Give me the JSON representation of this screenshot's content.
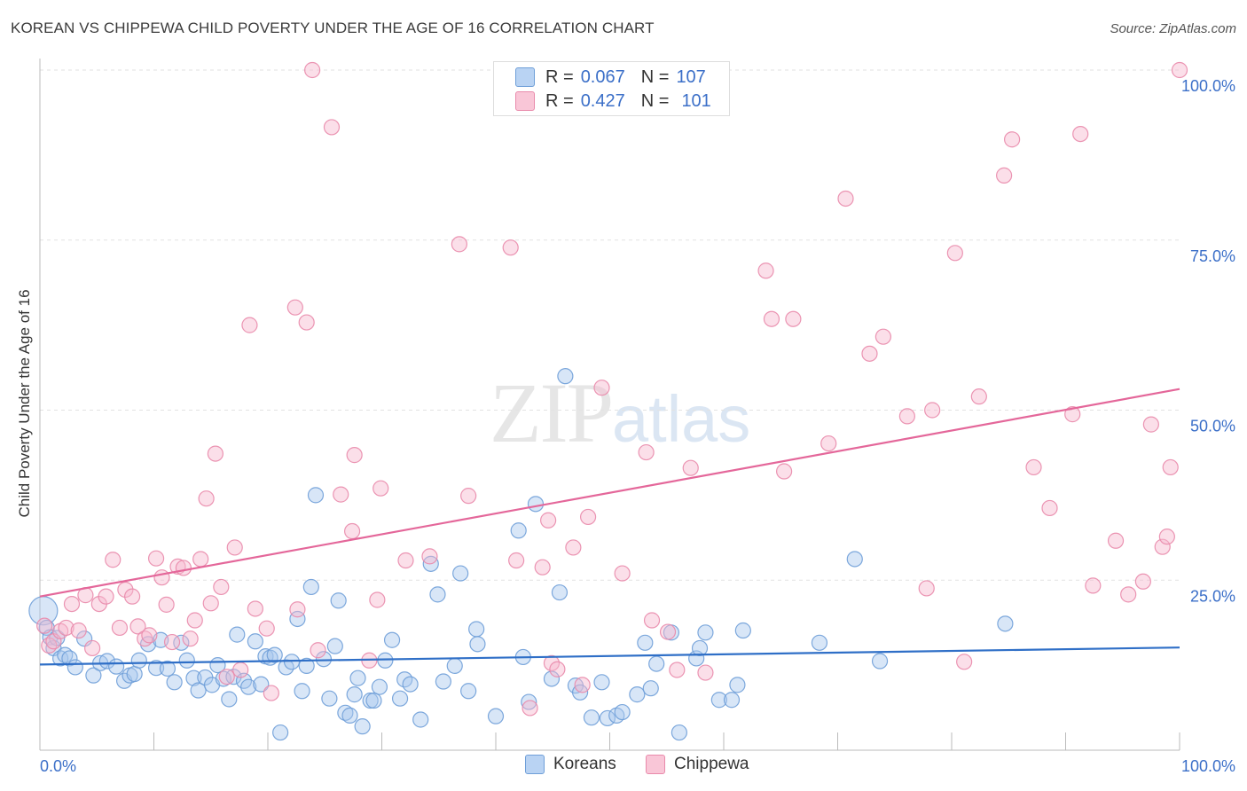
{
  "title": "KOREAN VS CHIPPEWA CHILD POVERTY UNDER THE AGE OF 16 CORRELATION CHART",
  "source": "Source: ZipAtlas.com",
  "watermark": {
    "zip": "ZIP",
    "atlas": "atlas"
  },
  "legend": {
    "r_label": "R =",
    "n_label": "N =",
    "rows": [
      {
        "r": "0.067",
        "n": "107"
      },
      {
        "r": "0.427",
        "n": "101"
      }
    ]
  },
  "colors": {
    "koreans_fill": "#a9c8ee",
    "koreans_stroke": "#6f9fd8",
    "koreans_line": "#2f6fc7",
    "chippewa_fill": "#f7b9ce",
    "chippewa_stroke": "#e98aab",
    "chippewa_line": "#e4679a",
    "axis_label": "#3b6fc8",
    "grid": "#e2e2e2"
  },
  "chart_data": {
    "type": "scatter",
    "title": "KOREAN VS CHIPPEWA CHILD POVERTY UNDER THE AGE OF 16 CORRELATION CHART",
    "xlabel": "",
    "ylabel": "Child Poverty Under the Age of 16",
    "xlim": [
      0,
      100
    ],
    "ylim": [
      0,
      100
    ],
    "x_tick_labels": [
      "0.0%",
      "100.0%"
    ],
    "y_tick_labels": [
      "25.0%",
      "50.0%",
      "75.0%",
      "100.0%"
    ],
    "y_ticks": [
      25,
      50,
      75,
      100
    ],
    "grid": true,
    "legend_position": "top-center",
    "series": [
      {
        "name": "Koreans",
        "r": 0.067,
        "n": 107,
        "trend": [
          [
            0,
            12.6
          ],
          [
            100,
            15.1
          ]
        ],
        "points": [
          [
            0.3,
            20.5
          ],
          [
            0.6,
            18.0
          ],
          [
            0.9,
            16.6
          ],
          [
            1.2,
            15.0
          ],
          [
            1.5,
            16.5
          ],
          [
            1.8,
            13.5
          ],
          [
            2.2,
            14.0
          ],
          [
            2.6,
            13.5
          ],
          [
            3.1,
            12.2
          ],
          [
            3.9,
            16.4
          ],
          [
            4.7,
            11.0
          ],
          [
            5.3,
            12.8
          ],
          [
            5.9,
            13.1
          ],
          [
            6.7,
            12.3
          ],
          [
            7.4,
            10.2
          ],
          [
            7.9,
            11.0
          ],
          [
            8.3,
            11.2
          ],
          [
            8.7,
            13.2
          ],
          [
            9.5,
            15.6
          ],
          [
            10.2,
            12.1
          ],
          [
            10.6,
            16.2
          ],
          [
            11.2,
            12.0
          ],
          [
            11.8,
            10.0
          ],
          [
            12.4,
            15.8
          ],
          [
            12.9,
            13.2
          ],
          [
            13.5,
            10.6
          ],
          [
            13.9,
            8.8
          ],
          [
            14.5,
            10.7
          ],
          [
            15.1,
            9.6
          ],
          [
            15.6,
            12.5
          ],
          [
            16.1,
            10.5
          ],
          [
            16.6,
            7.5
          ],
          [
            17.0,
            10.8
          ],
          [
            17.3,
            17.0
          ],
          [
            17.9,
            10.2
          ],
          [
            18.3,
            9.3
          ],
          [
            18.9,
            16.0
          ],
          [
            19.4,
            9.7
          ],
          [
            19.8,
            13.8
          ],
          [
            20.2,
            13.6
          ],
          [
            20.6,
            14.0
          ],
          [
            21.1,
            2.6
          ],
          [
            21.6,
            12.2
          ],
          [
            22.1,
            13.0
          ],
          [
            22.6,
            19.3
          ],
          [
            23.0,
            8.7
          ],
          [
            23.4,
            12.4
          ],
          [
            23.8,
            24.0
          ],
          [
            24.2,
            37.5
          ],
          [
            24.9,
            13.4
          ],
          [
            25.4,
            7.6
          ],
          [
            25.9,
            15.3
          ],
          [
            26.2,
            22.0
          ],
          [
            26.8,
            5.5
          ],
          [
            27.2,
            5.1
          ],
          [
            27.6,
            8.2
          ],
          [
            27.9,
            10.6
          ],
          [
            28.3,
            3.5
          ],
          [
            29.0,
            7.3
          ],
          [
            29.3,
            7.3
          ],
          [
            29.8,
            9.3
          ],
          [
            30.3,
            13.2
          ],
          [
            30.9,
            16.2
          ],
          [
            31.6,
            7.6
          ],
          [
            32.0,
            10.4
          ],
          [
            32.5,
            9.7
          ],
          [
            33.4,
            4.5
          ],
          [
            34.3,
            27.4
          ],
          [
            34.9,
            22.9
          ],
          [
            35.4,
            10.1
          ],
          [
            36.4,
            12.4
          ],
          [
            36.9,
            26.0
          ],
          [
            37.6,
            8.7
          ],
          [
            38.3,
            17.8
          ],
          [
            38.4,
            15.6
          ],
          [
            40.0,
            5.0
          ],
          [
            42.0,
            32.3
          ],
          [
            42.4,
            13.7
          ],
          [
            42.9,
            7.1
          ],
          [
            43.5,
            36.2
          ],
          [
            44.9,
            10.5
          ],
          [
            45.6,
            23.2
          ],
          [
            46.1,
            55.0
          ],
          [
            47.0,
            9.5
          ],
          [
            47.4,
            8.5
          ],
          [
            48.4,
            4.8
          ],
          [
            49.3,
            10.0
          ],
          [
            49.8,
            4.7
          ],
          [
            50.6,
            5.1
          ],
          [
            51.1,
            5.6
          ],
          [
            52.4,
            8.2
          ],
          [
            53.1,
            15.8
          ],
          [
            53.6,
            9.1
          ],
          [
            54.1,
            12.7
          ],
          [
            55.4,
            17.3
          ],
          [
            56.1,
            2.6
          ],
          [
            57.6,
            13.5
          ],
          [
            57.9,
            15.0
          ],
          [
            58.4,
            17.3
          ],
          [
            59.6,
            7.4
          ],
          [
            60.7,
            7.4
          ],
          [
            61.2,
            9.6
          ],
          [
            61.7,
            17.6
          ],
          [
            68.4,
            15.8
          ],
          [
            71.5,
            28.1
          ],
          [
            73.7,
            13.1
          ],
          [
            84.7,
            18.6
          ]
        ]
      },
      {
        "name": "Chippewa",
        "r": 0.427,
        "n": 101,
        "trend": [
          [
            0,
            22.6
          ],
          [
            100,
            53.1
          ]
        ],
        "points": [
          [
            0.4,
            18.3
          ],
          [
            0.8,
            15.4
          ],
          [
            1.2,
            16.0
          ],
          [
            1.8,
            17.5
          ],
          [
            2.3,
            18.0
          ],
          [
            2.8,
            21.5
          ],
          [
            3.4,
            17.6
          ],
          [
            4.0,
            22.8
          ],
          [
            4.6,
            15.0
          ],
          [
            5.2,
            21.5
          ],
          [
            5.8,
            22.6
          ],
          [
            6.4,
            28.0
          ],
          [
            7.0,
            18.0
          ],
          [
            7.5,
            23.6
          ],
          [
            8.1,
            22.6
          ],
          [
            8.6,
            18.2
          ],
          [
            9.2,
            16.4
          ],
          [
            9.6,
            16.9
          ],
          [
            10.2,
            28.2
          ],
          [
            10.7,
            25.4
          ],
          [
            11.1,
            21.4
          ],
          [
            11.6,
            15.9
          ],
          [
            12.1,
            27.0
          ],
          [
            12.6,
            26.8
          ],
          [
            13.2,
            16.4
          ],
          [
            13.6,
            19.1
          ],
          [
            14.1,
            28.1
          ],
          [
            14.6,
            37.0
          ],
          [
            15.0,
            21.6
          ],
          [
            15.4,
            43.6
          ],
          [
            15.9,
            24.0
          ],
          [
            16.4,
            10.8
          ],
          [
            17.1,
            29.8
          ],
          [
            17.6,
            11.8
          ],
          [
            18.4,
            62.5
          ],
          [
            18.9,
            20.8
          ],
          [
            19.9,
            17.9
          ],
          [
            20.3,
            8.4
          ],
          [
            22.4,
            65.1
          ],
          [
            22.6,
            20.7
          ],
          [
            23.4,
            62.9
          ],
          [
            23.9,
            100
          ],
          [
            24.4,
            14.7
          ],
          [
            25.6,
            91.6
          ],
          [
            26.4,
            37.6
          ],
          [
            27.4,
            32.2
          ],
          [
            27.6,
            43.4
          ],
          [
            28.9,
            13.2
          ],
          [
            29.6,
            22.1
          ],
          [
            29.9,
            38.5
          ],
          [
            32.1,
            27.9
          ],
          [
            34.2,
            28.5
          ],
          [
            36.8,
            74.4
          ],
          [
            37.6,
            37.4
          ],
          [
            41.3,
            73.9
          ],
          [
            41.8,
            27.9
          ],
          [
            43.0,
            6.2
          ],
          [
            44.1,
            26.9
          ],
          [
            44.6,
            33.8
          ],
          [
            44.9,
            12.8
          ],
          [
            45.4,
            11.9
          ],
          [
            46.8,
            29.8
          ],
          [
            47.6,
            9.6
          ],
          [
            48.1,
            34.3
          ],
          [
            49.3,
            53.3
          ],
          [
            51.1,
            26.0
          ],
          [
            53.2,
            43.8
          ],
          [
            53.7,
            19.1
          ],
          [
            55.1,
            17.4
          ],
          [
            55.9,
            11.8
          ],
          [
            57.1,
            41.5
          ],
          [
            58.4,
            11.4
          ],
          [
            63.7,
            70.5
          ],
          [
            64.2,
            63.4
          ],
          [
            65.3,
            41.0
          ],
          [
            66.1,
            63.4
          ],
          [
            69.2,
            45.1
          ],
          [
            70.7,
            81.1
          ],
          [
            72.8,
            58.3
          ],
          [
            74.0,
            60.8
          ],
          [
            76.1,
            49.1
          ],
          [
            77.8,
            23.8
          ],
          [
            78.3,
            50.0
          ],
          [
            80.3,
            73.1
          ],
          [
            81.1,
            13.0
          ],
          [
            82.4,
            52.0
          ],
          [
            84.6,
            84.5
          ],
          [
            85.3,
            89.8
          ],
          [
            87.2,
            41.6
          ],
          [
            88.6,
            35.6
          ],
          [
            90.6,
            49.4
          ],
          [
            91.3,
            90.6
          ],
          [
            92.4,
            24.2
          ],
          [
            94.4,
            30.8
          ],
          [
            95.5,
            22.9
          ],
          [
            96.8,
            24.8
          ],
          [
            97.5,
            47.9
          ],
          [
            98.5,
            29.9
          ],
          [
            99.2,
            41.6
          ],
          [
            100,
            100
          ],
          [
            98.9,
            31.4
          ]
        ]
      }
    ]
  }
}
